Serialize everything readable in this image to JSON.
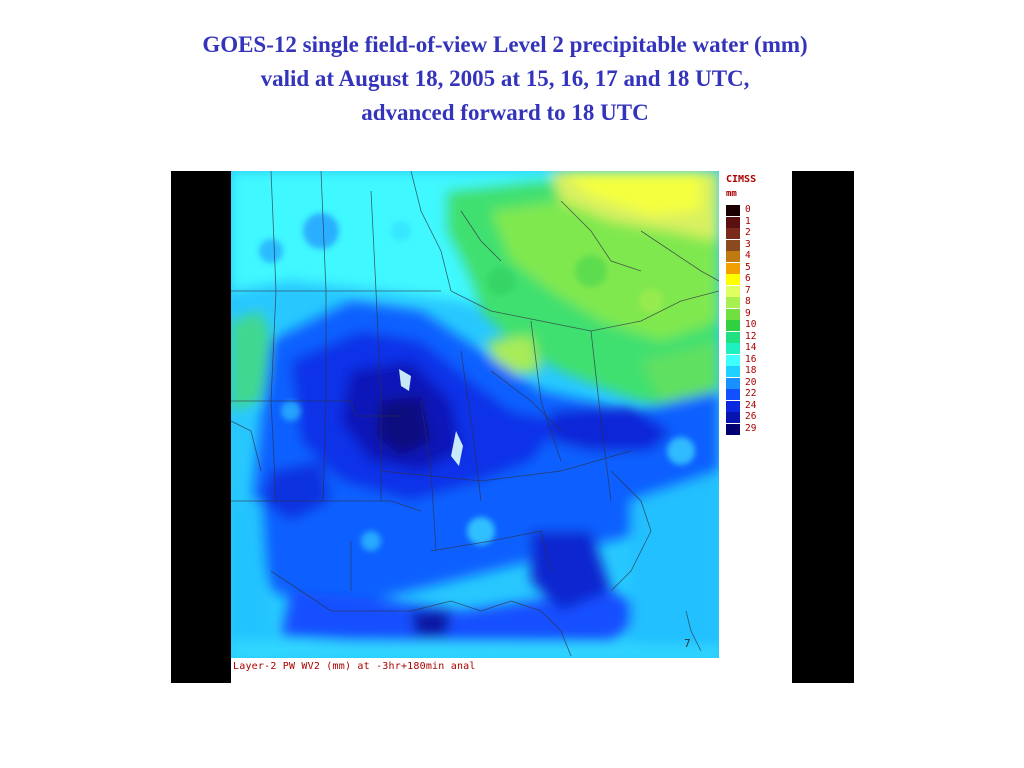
{
  "title": {
    "line1": "GOES-12 single field-of-view Level 2 precipitable water (mm)",
    "line2": "valid at August 18, 2005 at 15, 16, 17 and 18 UTC,",
    "line3": "advanced forward to 18 UTC"
  },
  "map": {
    "caption": "Layer-2 PW  WV2 (mm) at -3hr+180min anal",
    "corner_mark": "7",
    "legend_org": "CIMSS",
    "legend_unit": "mm",
    "legend": [
      {
        "label": "0",
        "color": "#1a0000"
      },
      {
        "label": "1",
        "color": "#5a1010"
      },
      {
        "label": "2",
        "color": "#7a2a1a"
      },
      {
        "label": "3",
        "color": "#8a4a20"
      },
      {
        "label": "4",
        "color": "#c07a10"
      },
      {
        "label": "5",
        "color": "#f0a000"
      },
      {
        "label": "6",
        "color": "#ffff00"
      },
      {
        "label": "7",
        "color": "#e0ff60"
      },
      {
        "label": "8",
        "color": "#a8f050"
      },
      {
        "label": "9",
        "color": "#70e040"
      },
      {
        "label": "10",
        "color": "#30d040"
      },
      {
        "label": "12",
        "color": "#20e080"
      },
      {
        "label": "14",
        "color": "#20f0c0"
      },
      {
        "label": "16",
        "color": "#40ffff"
      },
      {
        "label": "18",
        "color": "#20d0ff"
      },
      {
        "label": "20",
        "color": "#1890ff"
      },
      {
        "label": "22",
        "color": "#1050ff"
      },
      {
        "label": "24",
        "color": "#0a28e0"
      },
      {
        "label": "26",
        "color": "#0814b0"
      },
      {
        "label": "29",
        "color": "#000070"
      }
    ]
  }
}
